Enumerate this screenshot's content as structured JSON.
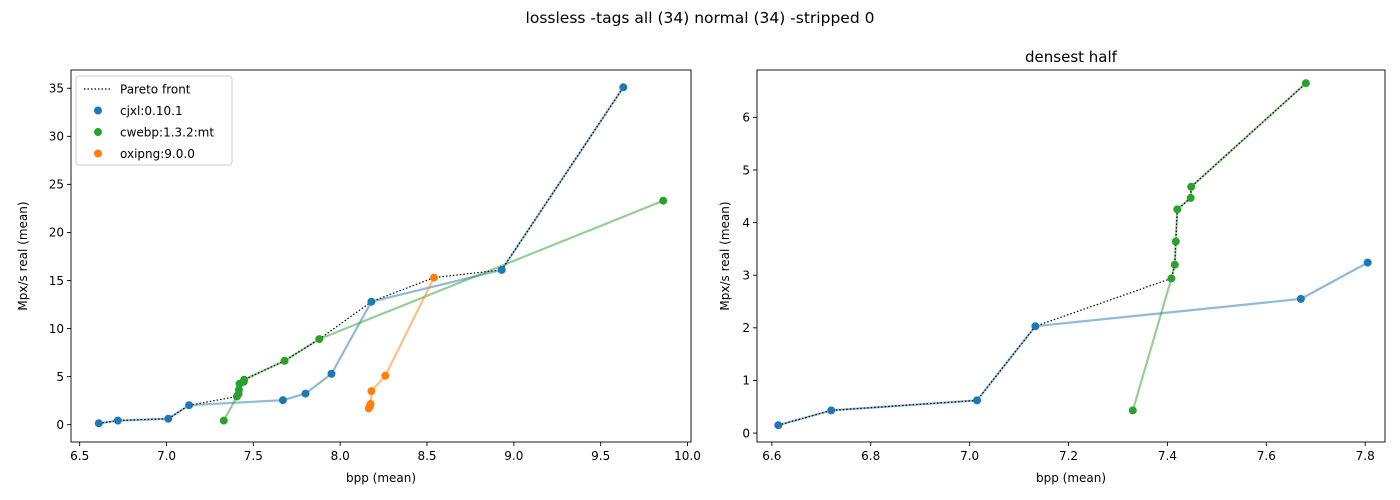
{
  "suptitle": "lossless -tags all (34) normal (34) -stripped 0",
  "chart_data": [
    {
      "type": "scatter",
      "title": "",
      "xlabel": "bpp (mean)",
      "ylabel": "Mpx/s real (mean)",
      "xlim": [
        6.45,
        10.02
      ],
      "ylim": [
        -1.8,
        36.9
      ],
      "xticks": [
        6.5,
        7.0,
        7.5,
        8.0,
        8.5,
        9.0,
        9.5,
        10.0
      ],
      "xtick_labels": [
        "6.5",
        "7.0",
        "7.5",
        "8.0",
        "8.5",
        "9.0",
        "9.5",
        "10.0"
      ],
      "yticks": [
        0,
        5,
        10,
        15,
        20,
        25,
        30,
        35
      ],
      "ytick_labels": [
        "0",
        "5",
        "10",
        "15",
        "20",
        "25",
        "30",
        "35"
      ],
      "legend": {
        "placement": "upper-left",
        "entries": [
          "Pareto front",
          "cjxl:0.10.1",
          "cwebp:1.3.2:mt",
          "oxipng:9.0.0"
        ]
      },
      "series": [
        {
          "name": "cjxl:0.10.1",
          "color": "#1f77b4",
          "x": [
            6.61,
            6.72,
            7.01,
            7.13,
            7.67,
            7.8,
            7.95,
            8.18,
            8.93,
            9.63
          ],
          "y": [
            0.15,
            0.43,
            0.62,
            2.03,
            2.55,
            3.24,
            5.3,
            12.8,
            16.1,
            35.1
          ]
        },
        {
          "name": "cwebp:1.3.2:mt",
          "color": "#2ca02c",
          "x": [
            7.33,
            7.405,
            7.415,
            7.417,
            7.42,
            7.445,
            7.447,
            7.68,
            7.88,
            9.86
          ],
          "y": [
            0.43,
            2.93,
            3.2,
            3.64,
            4.25,
            4.47,
            4.68,
            6.65,
            8.9,
            23.3
          ]
        },
        {
          "name": "oxipng:9.0.0",
          "color": "#ff7f0e",
          "x": [
            8.165,
            8.168,
            8.172,
            8.175,
            8.18,
            8.26,
            8.54
          ],
          "y": [
            1.7,
            1.85,
            2.0,
            2.15,
            3.5,
            5.1,
            15.3
          ]
        }
      ],
      "pareto_front": {
        "name": "Pareto front",
        "x": [
          6.61,
          6.72,
          7.01,
          7.13,
          7.405,
          7.415,
          7.417,
          7.42,
          7.445,
          7.447,
          7.68,
          7.88,
          8.18,
          8.54,
          8.93,
          9.63
        ],
        "y": [
          0.15,
          0.43,
          0.62,
          2.03,
          2.93,
          3.2,
          3.64,
          4.25,
          4.47,
          4.68,
          6.65,
          8.9,
          12.8,
          15.3,
          16.1,
          35.1
        ]
      }
    },
    {
      "type": "scatter",
      "title": "densest half",
      "xlabel": "bpp (mean)",
      "ylabel": "Mpx/s real (mean)",
      "xlim": [
        6.57,
        7.84
      ],
      "ylim": [
        -0.17,
        6.9
      ],
      "xticks": [
        6.6,
        6.8,
        7.0,
        7.2,
        7.4,
        7.6,
        7.8
      ],
      "xtick_labels": [
        "6.6",
        "6.8",
        "7.0",
        "7.2",
        "7.4",
        "7.6",
        "7.8"
      ],
      "yticks": [
        0,
        1,
        2,
        3,
        4,
        5,
        6
      ],
      "ytick_labels": [
        "0",
        "1",
        "2",
        "3",
        "4",
        "5",
        "6"
      ],
      "series": [
        {
          "name": "cjxl:0.10.1",
          "color": "#1f77b4",
          "x": [
            6.613,
            6.72,
            7.015,
            7.133,
            7.67,
            7.805
          ],
          "y": [
            0.15,
            0.43,
            0.62,
            2.03,
            2.55,
            3.24
          ]
        },
        {
          "name": "cwebp:1.3.2:mt",
          "color": "#2ca02c",
          "x": [
            7.33,
            7.408,
            7.415,
            7.417,
            7.42,
            7.447,
            7.448,
            7.68
          ],
          "y": [
            0.43,
            2.94,
            3.2,
            3.64,
            4.25,
            4.47,
            4.68,
            6.65
          ]
        }
      ],
      "pareto_front": {
        "name": "Pareto front",
        "x": [
          6.613,
          6.72,
          7.015,
          7.133,
          7.408,
          7.415,
          7.417,
          7.42,
          7.447,
          7.448,
          7.68
        ],
        "y": [
          0.15,
          0.43,
          0.62,
          2.03,
          2.94,
          3.2,
          3.64,
          4.25,
          4.47,
          4.68,
          6.65
        ]
      }
    }
  ]
}
